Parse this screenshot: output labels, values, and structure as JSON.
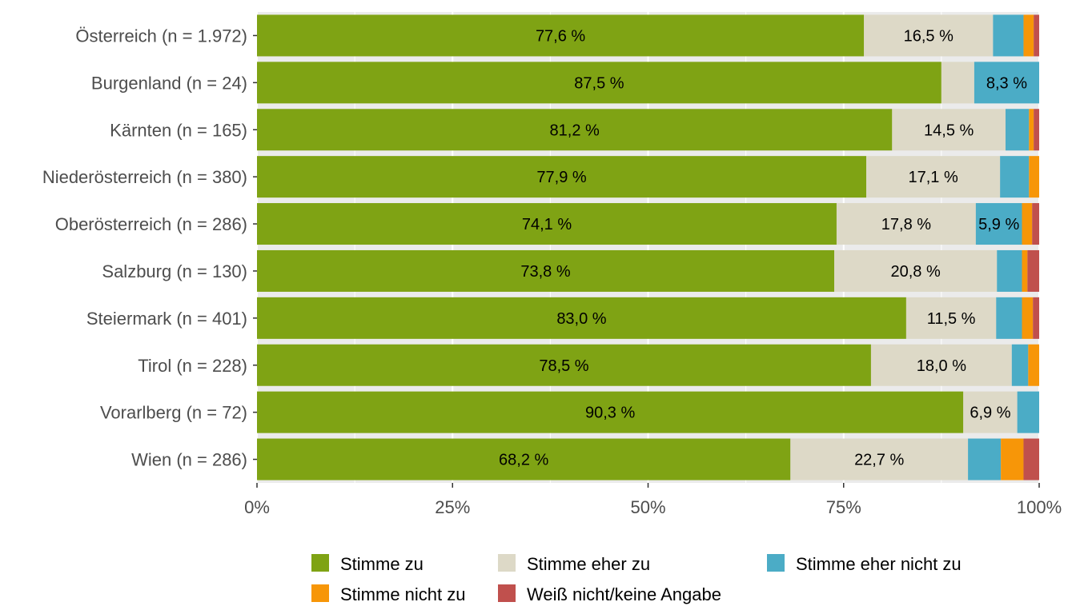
{
  "chart_data": {
    "type": "bar",
    "orientation": "horizontal",
    "stacked": "percent",
    "categories": [
      "Österreich (n = 1.972)",
      "Burgenland (n = 24)",
      "Kärnten (n = 165)",
      "Niederösterreich (n = 380)",
      "Oberösterreich (n = 286)",
      "Salzburg (n = 130)",
      "Steiermark (n = 401)",
      "Tirol (n = 228)",
      "Vorarlberg (n = 72)",
      "Wien (n = 286)"
    ],
    "series": [
      {
        "name": "Stimme zu",
        "color": "#7fa314",
        "values": [
          77.6,
          87.5,
          81.2,
          77.9,
          74.1,
          73.8,
          83.0,
          78.5,
          90.3,
          68.2
        ],
        "labels": [
          "77,6 %",
          "87,5 %",
          "81,2 %",
          "77,9 %",
          "74,1 %",
          "73,8 %",
          "83,0 %",
          "78,5 %",
          "90,3 %",
          "68,2 %"
        ]
      },
      {
        "name": "Stimme eher zu",
        "color": "#ddd9c7",
        "values": [
          16.5,
          4.2,
          14.5,
          17.1,
          17.8,
          20.8,
          11.5,
          18.0,
          6.9,
          22.7
        ],
        "labels": [
          "16,5 %",
          "",
          "14,5 %",
          "17,1 %",
          "17,8 %",
          "20,8 %",
          "11,5 %",
          "18,0 %",
          "6,9 %",
          "22,7 %"
        ]
      },
      {
        "name": "Stimme eher nicht zu",
        "color": "#4bacc6",
        "values": [
          3.9,
          8.3,
          3.0,
          3.7,
          5.9,
          3.2,
          3.3,
          2.1,
          2.8,
          4.2
        ],
        "labels": [
          "",
          "8,3 %",
          "",
          "",
          "5,9 %",
          "",
          "",
          "",
          "",
          ""
        ]
      },
      {
        "name": "Stimme nicht zu",
        "color": "#f79608",
        "values": [
          1.3,
          0.0,
          0.6,
          1.3,
          1.3,
          0.7,
          1.4,
          1.4,
          0.0,
          2.9
        ],
        "labels": [
          "",
          "",
          "",
          "",
          "",
          "",
          "",
          "",
          "",
          ""
        ]
      },
      {
        "name": "Weiß nicht/keine Angabe",
        "color": "#c0504d",
        "values": [
          0.7,
          0.0,
          0.7,
          0.0,
          0.9,
          1.5,
          0.8,
          0.0,
          0.0,
          2.0
        ],
        "labels": [
          "",
          "",
          "",
          "",
          "",
          "",
          "",
          "",
          "",
          ""
        ]
      }
    ],
    "x_ticks": [
      "0%",
      "25%",
      "50%",
      "75%",
      "100%"
    ],
    "xlim": [
      0,
      100
    ],
    "xlabel": "",
    "ylabel": "",
    "grid": true,
    "legend": {
      "position": "bottom",
      "rows": [
        [
          "Stimme zu",
          "Stimme eher zu",
          "Stimme eher nicht zu"
        ],
        [
          "Stimme nicht zu",
          "Weiß nicht/keine Angabe"
        ]
      ]
    },
    "panel_background": "#ebebeb"
  }
}
